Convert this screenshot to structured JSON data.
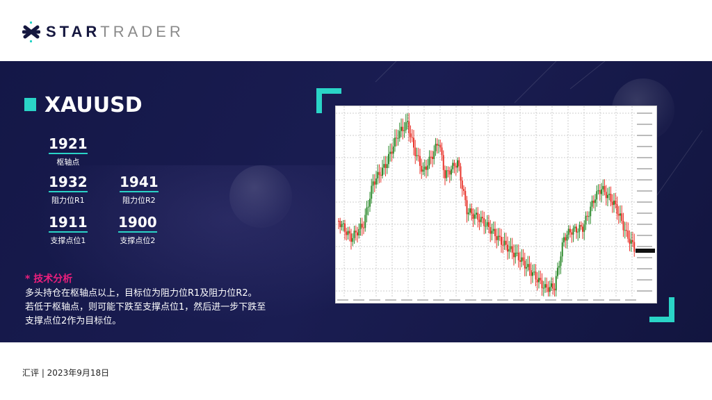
{
  "brand": {
    "name_bold": "STAR",
    "name_light": "TRADER",
    "accent": "#2ad4c7",
    "dark": "#15173f"
  },
  "symbol": "XAUUSD",
  "levels": {
    "pivot": {
      "value": "1921",
      "label": "枢轴点"
    },
    "r1": {
      "value": "1932",
      "label": "阻力位R1"
    },
    "r2": {
      "value": "1941",
      "label": "阻力位R2"
    },
    "s1": {
      "value": "1911",
      "label": "支撑点位1"
    },
    "s2": {
      "value": "1900",
      "label": "支撑点位2"
    }
  },
  "analysis": {
    "title": "* 技术分析",
    "lines": [
      "多头持仓在枢轴点以上，目标位为阻力位R1及阻力位R2。",
      "若低于枢轴点，则可能下跌至支撑点位1，然后进一步下跌至",
      "支撑点位2作为目标位。"
    ]
  },
  "footer": "汇评 | 2023年9月18日",
  "colors": {
    "up": "#2e8b2e",
    "down": "#e8332a",
    "highlight": "#ec1f7c"
  }
}
